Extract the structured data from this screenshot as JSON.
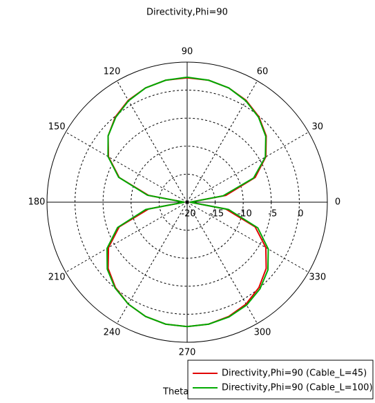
{
  "chart_data": {
    "type": "polar",
    "title": "Directivity,Phi=90",
    "xlabel": "Theta /",
    "x": [
      0,
      10,
      20,
      30,
      40,
      50,
      60,
      70,
      80,
      90,
      100,
      110,
      120,
      130,
      140,
      150,
      160,
      170,
      180,
      190,
      200,
      210,
      220,
      230,
      240,
      250,
      260,
      270,
      280,
      290,
      300,
      310,
      320,
      330,
      340,
      350
    ],
    "series": [
      {
        "name": "Directivity,Phi=90 (Cable_L=45)",
        "color": "#e00000",
        "values": [
          -19.5,
          -13.0,
          -7.1,
          -3.8,
          -1.6,
          -0.1,
          1.0,
          1.7,
          2.1,
          2.2,
          2.1,
          1.7,
          1.0,
          -0.1,
          -1.6,
          -3.8,
          -7.1,
          -13.0,
          -19.5,
          -13.0,
          -7.1,
          -3.8,
          -1.6,
          -0.1,
          1.0,
          1.7,
          2.1,
          2.2,
          2.1,
          1.7,
          1.0,
          -0.1,
          -1.6,
          -3.8,
          -7.1,
          -13.0
        ]
      },
      {
        "name": "Directivity,Phi=90 (Cable_L=100)",
        "color": "#00aa00",
        "values": [
          -19.5,
          -13.5,
          -7.4,
          -3.9,
          -1.7,
          -0.2,
          0.9,
          1.7,
          2.1,
          2.3,
          2.1,
          1.7,
          0.9,
          -0.2,
          -1.6,
          -3.7,
          -7.0,
          -12.8,
          -19.5,
          -12.5,
          -6.8,
          -3.5,
          -1.4,
          0.0,
          1.0,
          1.7,
          2.1,
          2.2,
          2.1,
          1.8,
          1.2,
          0.2,
          -1.2,
          -3.3,
          -6.6,
          -12.5
        ]
      }
    ],
    "rlim": [
      -20,
      5
    ],
    "rticks": [
      -20,
      -15,
      -10,
      -5,
      0
    ],
    "thetaticks": [
      0,
      30,
      60,
      90,
      120,
      150,
      180,
      210,
      240,
      270,
      300,
      330
    ],
    "grid": true
  }
}
